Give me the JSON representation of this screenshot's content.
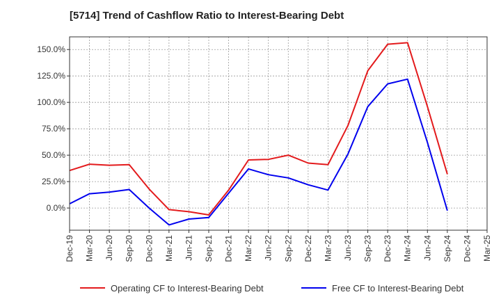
{
  "chart_data": {
    "type": "line",
    "title": "[5714]  Trend of Cashflow Ratio to Interest-Bearing Debt",
    "xlabel": "",
    "ylabel": "",
    "x": [
      "Dec-19",
      "Mar-20",
      "Jun-20",
      "Sep-20",
      "Dec-20",
      "Mar-21",
      "Jun-21",
      "Sep-21",
      "Dec-21",
      "Mar-22",
      "Jun-22",
      "Sep-22",
      "Dec-22",
      "Mar-23",
      "Jun-23",
      "Sep-23",
      "Dec-23",
      "Mar-24",
      "Jun-24",
      "Sep-24",
      "Dec-24",
      "Mar-25"
    ],
    "ylim": [
      -21,
      162
    ],
    "yticks": [
      0,
      25,
      50,
      75,
      100,
      125,
      150
    ],
    "ytick_labels": [
      "0.0%",
      "25.0%",
      "50.0%",
      "75.0%",
      "100.0%",
      "125.0%",
      "150.0%"
    ],
    "grid": true,
    "legend_position": "bottom",
    "series": [
      {
        "name": "Operating CF to Interest-Bearing Debt",
        "color": "#e31a1c",
        "values": [
          35.5,
          41.5,
          40.5,
          41,
          18,
          -1.5,
          -3.5,
          -6.5,
          17,
          45.5,
          46,
          50,
          42.5,
          41,
          78,
          130,
          155,
          156.5,
          96,
          32,
          null,
          null
        ]
      },
      {
        "name": "Free CF to Interest-Bearing Debt",
        "color": "#0000ee",
        "values": [
          4,
          13.5,
          15,
          17.5,
          0,
          -16,
          -10.5,
          -9,
          14,
          37,
          31.5,
          28.5,
          22,
          17,
          51,
          96,
          117.5,
          122,
          62,
          -2.5,
          null,
          null
        ]
      }
    ]
  }
}
